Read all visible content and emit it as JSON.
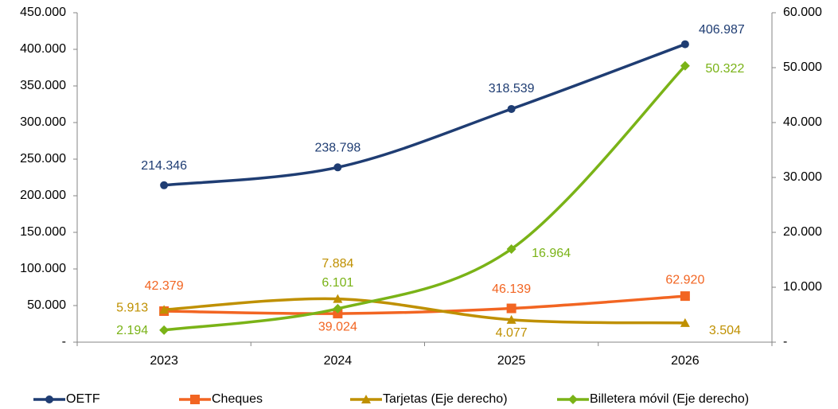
{
  "chart_data": {
    "type": "line",
    "categories": [
      "2023",
      "2024",
      "2025",
      "2026"
    ],
    "ylim": [
      0,
      450000
    ],
    "yticks": [
      {
        "value": 0,
        "label": "-"
      },
      {
        "value": 50000,
        "label": "50.000"
      },
      {
        "value": 100000,
        "label": "100.000"
      },
      {
        "value": 150000,
        "label": "150.000"
      },
      {
        "value": 200000,
        "label": "200.000"
      },
      {
        "value": 250000,
        "label": "250.000"
      },
      {
        "value": 300000,
        "label": "300.000"
      },
      {
        "value": 350000,
        "label": "350.000"
      },
      {
        "value": 400000,
        "label": "400.000"
      },
      {
        "value": 450000,
        "label": "450.000"
      }
    ],
    "y2lim": [
      0,
      60000
    ],
    "y2ticks": [
      {
        "value": 0,
        "label": "-"
      },
      {
        "value": 10000,
        "label": "10.000"
      },
      {
        "value": 20000,
        "label": "20.000"
      },
      {
        "value": 30000,
        "label": "30.000"
      },
      {
        "value": 40000,
        "label": "40.000"
      },
      {
        "value": 50000,
        "label": "50.000"
      },
      {
        "value": 60000,
        "label": "60.000"
      }
    ],
    "legend": "bottom",
    "series": [
      {
        "name": "OETF",
        "color": "#1f3d73",
        "marker": "circle",
        "values": [
          214346,
          238798,
          318539,
          406987
        ],
        "value_labels": [
          "214.346",
          "238.798",
          "318.539",
          "406.987"
        ]
      },
      {
        "name": "Cheques",
        "color": "#f26522",
        "marker": "square",
        "values": [
          42379,
          39024,
          46139,
          62920
        ],
        "value_labels": [
          "42.379",
          "39.024",
          "46.139",
          "62.920"
        ]
      },
      {
        "name": "Tarjetas (Eje derecho)",
        "color": "#bf9000",
        "marker": "triangle",
        "axis": "y2",
        "values": [
          5913,
          7884,
          4077,
          3504
        ],
        "value_labels": [
          "5.913",
          "7.884",
          "4.077",
          "3.504"
        ]
      },
      {
        "name": "Billetera móvil (Eje derecho)",
        "color": "#7ab317",
        "marker": "diamond",
        "axis": "y2",
        "values": [
          2194,
          6101,
          16964,
          50322
        ],
        "value_labels": [
          "2.194",
          "6.101",
          "16.964",
          "50.322"
        ]
      }
    ]
  }
}
